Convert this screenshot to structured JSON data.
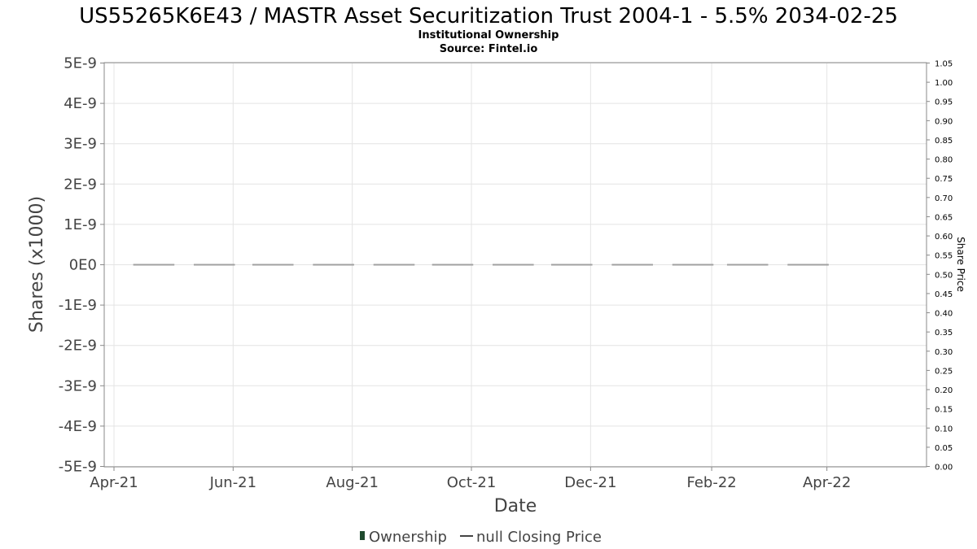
{
  "chart_data": {
    "type": "bar",
    "title": "US55265K6E43 / MASTR Asset Securitization Trust 2004-1 - 5.5% 2034-02-25",
    "subtitle_lines": [
      "Institutional Ownership",
      "Source: Fintel.io"
    ],
    "xlabel": "Date",
    "ylabel": "Shares (x1000)",
    "ylabel_right": "Share Price",
    "x_ticks": [
      "Apr-21",
      "Jun-21",
      "Aug-21",
      "Oct-21",
      "Dec-21",
      "Feb-22",
      "Apr-22"
    ],
    "x_tick_dates": [
      "2021-04-01",
      "2021-06-01",
      "2021-08-01",
      "2021-10-01",
      "2021-12-01",
      "2022-02-01",
      "2022-04-01"
    ],
    "x_range": [
      "2021-03-27",
      "2022-05-22"
    ],
    "y_ticks": [
      "5E-9",
      "4E-9",
      "3E-9",
      "2E-9",
      "1E-9",
      "0E0",
      "-1E-9",
      "-2E-9",
      "-3E-9",
      "-4E-9",
      "-5E-9"
    ],
    "ylim": [
      -5e-09,
      5e-09
    ],
    "y2_ticks": [
      "1.05",
      "1.00",
      "0.95",
      "0.90",
      "0.85",
      "0.80",
      "0.75",
      "0.70",
      "0.65",
      "0.60",
      "0.55",
      "0.50",
      "0.45",
      "0.40",
      "0.35",
      "0.30",
      "0.25",
      "0.20",
      "0.15",
      "0.10",
      "0.05",
      "0.00"
    ],
    "y2lim": [
      0,
      1.05
    ],
    "grid": true,
    "legend_placement": "bottom-center",
    "series": [
      {
        "name": "Ownership",
        "type": "bar",
        "color": "#1f4a2e",
        "x": [
          "2021-05-01",
          "2021-06-01",
          "2021-07-01",
          "2021-08-01",
          "2021-09-01",
          "2021-10-01",
          "2021-11-01",
          "2021-12-01",
          "2022-01-01",
          "2022-02-01",
          "2022-03-01",
          "2022-04-01"
        ],
        "values": [
          0,
          0,
          0,
          0,
          0,
          0,
          0,
          0,
          0,
          0,
          0,
          0
        ]
      }
    ],
    "legend": [
      {
        "name": "Ownership",
        "symbol": "square",
        "color": "#1f4a2e"
      },
      {
        "name": "null Closing Price",
        "symbol": "line",
        "color": "#444444"
      }
    ]
  }
}
